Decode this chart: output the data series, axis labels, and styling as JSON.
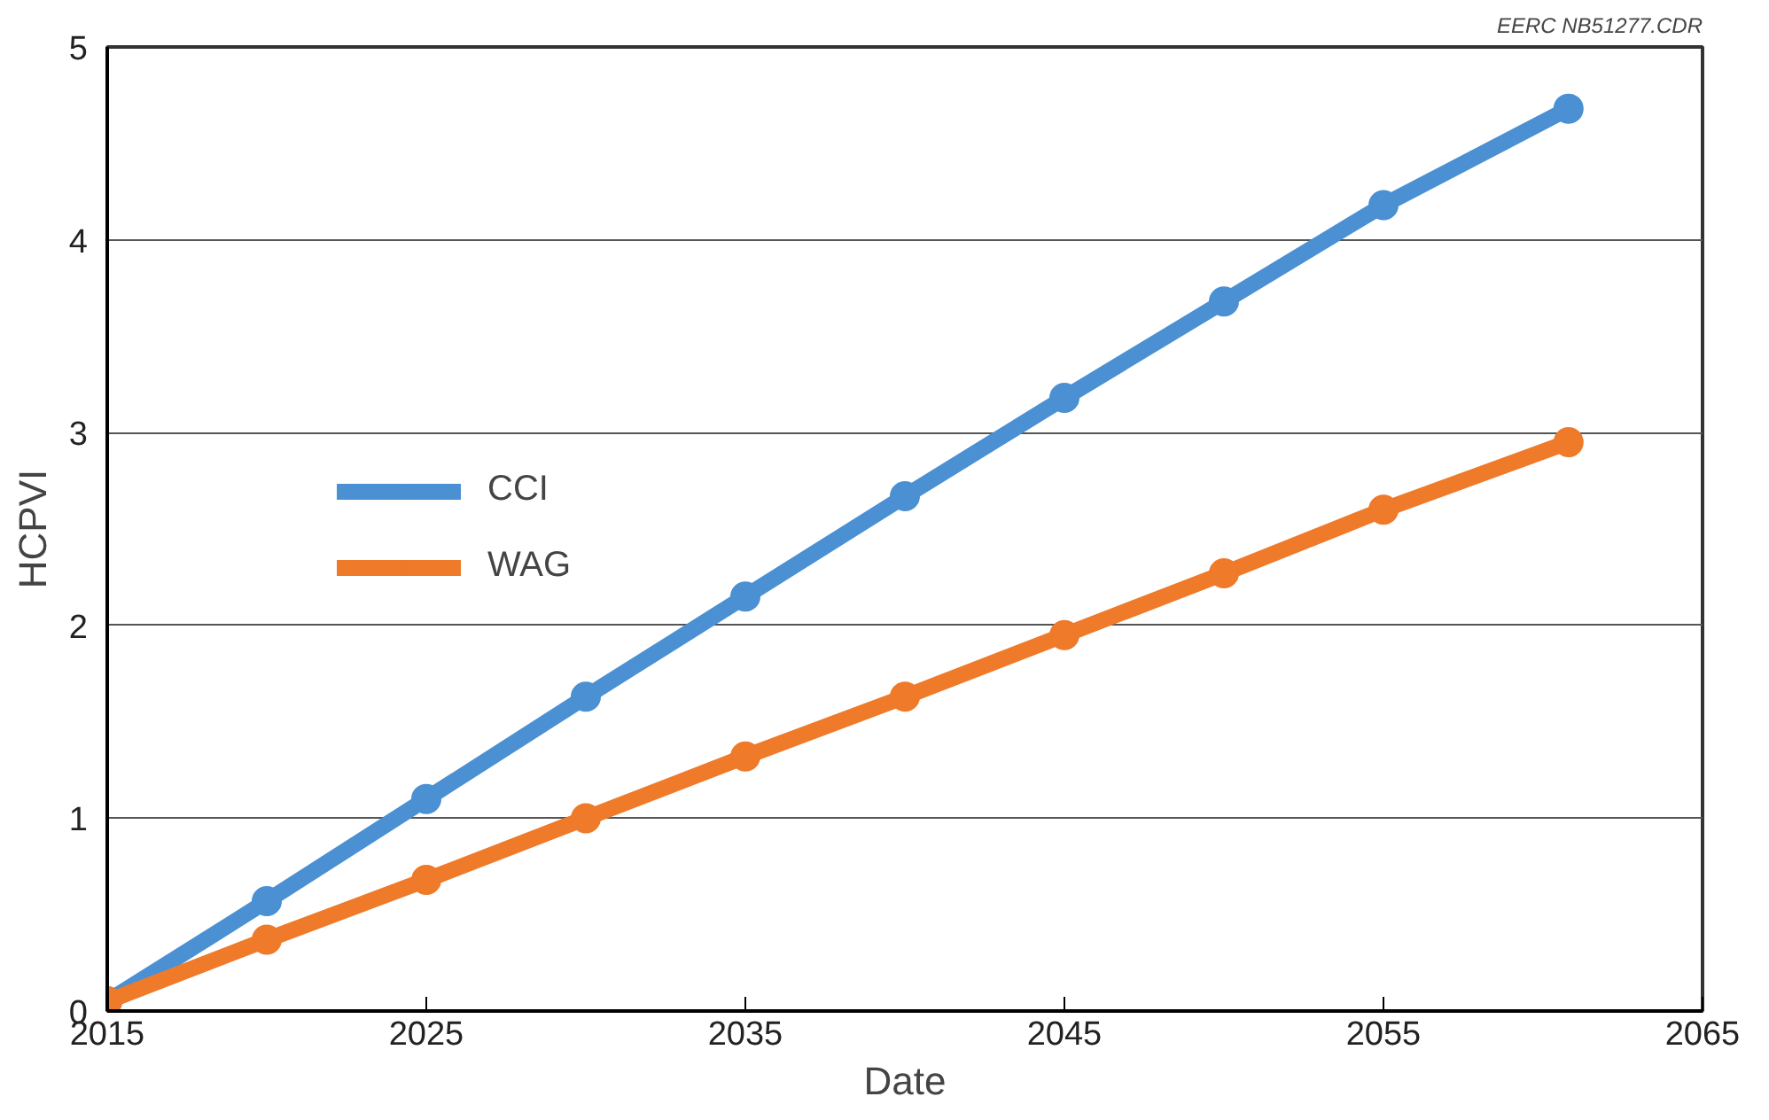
{
  "chart_data": {
    "type": "line",
    "xlabel": "Date",
    "ylabel": "HCPVI",
    "annotations": [
      "EERC NB51277.CDR"
    ],
    "xlim": [
      2015,
      2065
    ],
    "xticks": [
      2015,
      2025,
      2035,
      2045,
      2055,
      2065
    ],
    "ylim": [
      0,
      5
    ],
    "yticks": [
      0,
      1,
      2,
      3,
      4,
      5
    ],
    "grid": "y",
    "legend": "left",
    "marker": "circle",
    "line_style": "solid",
    "series": [
      {
        "name": "CCI",
        "color": "#4a90d2",
        "x": [
          2015,
          2020,
          2025,
          2030,
          2035,
          2040,
          2045,
          2050,
          2055,
          2060.8
        ],
        "values": [
          0.05,
          0.57,
          1.1,
          1.63,
          2.15,
          2.67,
          3.18,
          3.68,
          4.18,
          4.68
        ]
      },
      {
        "name": "WAG",
        "color": "#ee7a2a",
        "x": [
          2015,
          2020,
          2025,
          2030,
          2035,
          2040,
          2045,
          2050,
          2055,
          2060.8
        ],
        "values": [
          0.05,
          0.37,
          0.68,
          1.0,
          1.32,
          1.63,
          1.95,
          2.27,
          2.6,
          2.95
        ]
      }
    ]
  }
}
